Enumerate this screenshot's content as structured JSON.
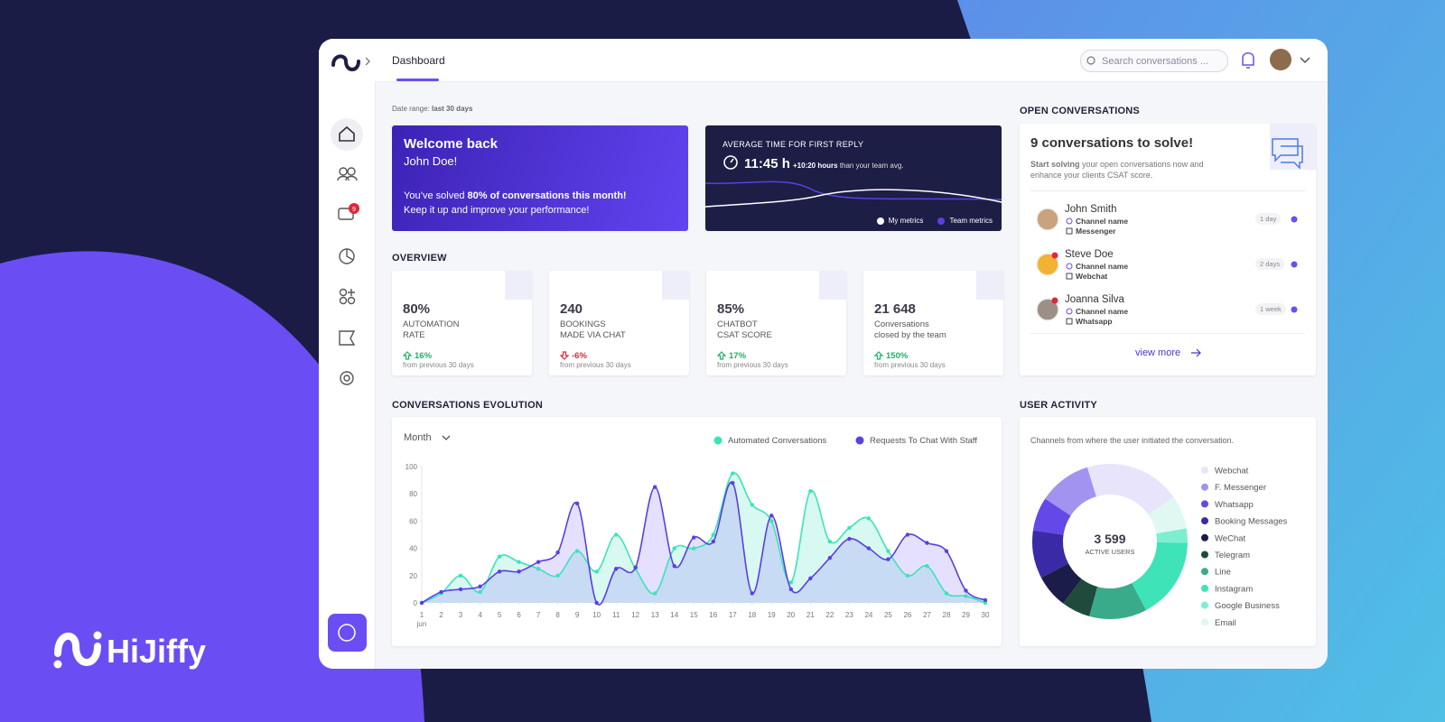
{
  "header": {
    "tab": "Dashboard",
    "search_placeholder": "Search conversations ..."
  },
  "sidebar": {
    "badge": "9"
  },
  "brand": "HiJiffy",
  "date_range": {
    "label": "Date range:",
    "value": "last 30 days"
  },
  "welcome": {
    "title": "Welcome back",
    "name": "John Doe!",
    "message_prefix": "You’ve solved",
    "message_bold": "80% of conversations this month!",
    "message_suffix": "Keep it up and improve your performance!"
  },
  "first_reply": {
    "title": "AVERAGE TIME FOR FIRST REPLY",
    "value": "11:45 h",
    "delta": "+10:20 hours",
    "delta_suffix": "than your team avg.",
    "series": [
      {
        "name": "My metrics",
        "color": "#ffffff"
      },
      {
        "name": "Team metrics",
        "color": "#5b3fe0"
      }
    ]
  },
  "overview": {
    "title": "OVERVIEW",
    "cards": [
      {
        "value": "80%",
        "label_lines": [
          "AUTOMATION",
          "RATE"
        ],
        "change": "16%",
        "trend": "up",
        "note": "from previous 30 days"
      },
      {
        "value": "240",
        "label_lines": [
          "BOOKINGS",
          "MADE VIA CHAT"
        ],
        "change": "-6%",
        "trend": "down",
        "note": "from previous 30 days"
      },
      {
        "value": "85%",
        "label_lines": [
          "CHATBOT",
          "CSAT SCORE"
        ],
        "change": "17%",
        "trend": "up",
        "note": "from previous 30 days"
      },
      {
        "value": "21 648",
        "label_lines": [
          "Conversations",
          "closed by the team"
        ],
        "change": "150%",
        "trend": "up",
        "note": "from previous 30 days"
      }
    ]
  },
  "open_conversations": {
    "title": "OPEN CONVERSATIONS",
    "headline": "9 conversations to solve!",
    "intro_bold": "Start solving",
    "intro": "your open conversations now and enhance your clients CSAT score.",
    "items": [
      {
        "name": "John Smith",
        "channel": "Channel name",
        "source": "Messenger",
        "age": "1 day",
        "unread": false,
        "avatar": "#c9a27e"
      },
      {
        "name": "Steve Doe",
        "channel": "Channel name",
        "source": "Webchat",
        "age": "2 days",
        "unread": true,
        "avatar": "#f2b233"
      },
      {
        "name": "Joanna Silva",
        "channel": "Channel name",
        "source": "Whatsapp",
        "age": "1 week",
        "unread": true,
        "avatar": "#9c8f84"
      }
    ],
    "link": "view more"
  },
  "evolution": {
    "title": "CONVERSATIONS EVOLUTION",
    "period": "Month",
    "x_sublabel": "jun",
    "x": [
      1,
      2,
      3,
      4,
      5,
      6,
      7,
      8,
      9,
      10,
      11,
      12,
      13,
      14,
      15,
      16,
      17,
      18,
      19,
      20,
      21,
      22,
      23,
      24,
      25,
      26,
      27,
      28,
      29,
      30
    ],
    "xlim": [
      1,
      30
    ],
    "xticks": [
      1,
      2,
      3,
      4,
      5,
      6,
      7,
      8,
      9,
      10,
      11,
      12,
      13,
      14,
      15,
      16,
      17,
      18,
      19,
      20,
      21,
      22,
      23,
      24,
      25,
      26,
      27,
      28,
      29,
      30
    ],
    "ylim": [
      0,
      100
    ],
    "yticks": [
      0,
      20,
      40,
      60,
      80,
      100
    ],
    "series": [
      {
        "name": "Automated Conversations",
        "color": "#3ee3b8",
        "fill": "#4fe3c1",
        "values": [
          0,
          7,
          20,
          8,
          34,
          30,
          25,
          20,
          38,
          23,
          50,
          25,
          7,
          40,
          40,
          50,
          95,
          72,
          60,
          15,
          82,
          45,
          55,
          62,
          38,
          20,
          27,
          7,
          5,
          0
        ]
      },
      {
        "name": "Requests To Chat With Staff",
        "color": "#5b3fe0",
        "fill": "#8b73ff",
        "values": [
          0,
          8,
          10,
          12,
          23,
          23,
          30,
          37,
          73,
          0,
          25,
          26,
          85,
          27,
          48,
          45,
          88,
          7,
          64,
          10,
          18,
          33,
          47,
          40,
          32,
          50,
          44,
          38,
          9,
          2
        ]
      }
    ]
  },
  "activity": {
    "title": "USER ACTIVITY",
    "subtitle": "Channels from where the user initiated the conversation.",
    "total": "3 599",
    "total_label": "ACTIVE USERS",
    "categories": [
      "Webchat",
      "F. Messenger",
      "Whatsapp",
      "Booking Messages",
      "WeChat",
      "Telegram",
      "Line",
      "Instagram",
      "Google Business",
      "Email"
    ],
    "values": [
      20,
      11,
      7,
      10,
      7,
      6,
      12,
      17,
      3,
      7
    ],
    "colors": [
      "#e8e4fb",
      "#a393f0",
      "#6548e8",
      "#3a2aa6",
      "#1c1c48",
      "#1f4a3c",
      "#3aab8a",
      "#3ee3b8",
      "#7eeed0",
      "#dff9f2"
    ]
  }
}
